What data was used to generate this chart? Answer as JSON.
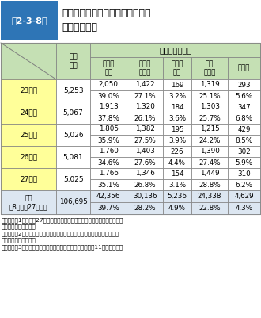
{
  "title_label": "第2-3-8表",
  "title_text": "各年度の消防職員委員会審議件数\n及び審議結果",
  "header_col1": "審議\n件数",
  "header_group": "審議結果の区分",
  "sub_headers": [
    "実施が\n適当",
    "諸課題\nを検討",
    "実施は\n困難",
    "現行\nどおり",
    "その他"
  ],
  "rows": [
    {
      "year": "23年度",
      "total": "5,253",
      "vals": [
        "2,050",
        "1,422",
        "169",
        "1,319",
        "293"
      ],
      "pcts": [
        "39.0%",
        "27.1%",
        "3.2%",
        "25.1%",
        "5.6%"
      ]
    },
    {
      "year": "24年度",
      "total": "5,067",
      "vals": [
        "1,913",
        "1,320",
        "184",
        "1,303",
        "347"
      ],
      "pcts": [
        "37.8%",
        "26.1%",
        "3.6%",
        "25.7%",
        "6.8%"
      ]
    },
    {
      "year": "25年度",
      "total": "5,026",
      "vals": [
        "1,805",
        "1,382",
        "195",
        "1,215",
        "429"
      ],
      "pcts": [
        "35.9%",
        "27.5%",
        "3.9%",
        "24.2%",
        "8.5%"
      ]
    },
    {
      "year": "26年度",
      "total": "5,081",
      "vals": [
        "1,760",
        "1,403",
        "226",
        "1,390",
        "302"
      ],
      "pcts": [
        "34.6%",
        "27.6%",
        "4.4%",
        "27.4%",
        "5.9%"
      ]
    },
    {
      "year": "27年度",
      "total": "5,025",
      "vals": [
        "1,766",
        "1,346",
        "154",
        "1,449",
        "310"
      ],
      "pcts": [
        "35.1%",
        "26.8%",
        "3.1%",
        "28.8%",
        "6.2%"
      ]
    }
  ],
  "cumulative": {
    "year": "累計\n（8年度〜27年度）",
    "total": "106,695",
    "vals": [
      "42,356",
      "30,136",
      "5,236",
      "24,338",
      "4,629"
    ],
    "pcts": [
      "39.7%",
      "28.2%",
      "4.9%",
      "22.8%",
      "4.3%"
    ]
  },
  "note_lines": [
    "（備考）　1　「平成27年度における消防職員委員会の運営状況調査」によ",
    "　　　　　　　り作成",
    "　　　　　2　小数点第二位を四捨五入のため、合計等が一致しない場合が",
    "　　　　　　　ある。",
    "　　　　　3　審議結果のうち、「その他」については平成11年度から設定"
  ],
  "color_title_bg": "#2e75b6",
  "color_title_text": "#ffffff",
  "color_header_bg": "#c5e0b4",
  "color_year_bg": "#ffff99",
  "color_cumul_bg": "#dce6f1",
  "color_white": "#ffffff",
  "color_border": "#7f7f7f"
}
